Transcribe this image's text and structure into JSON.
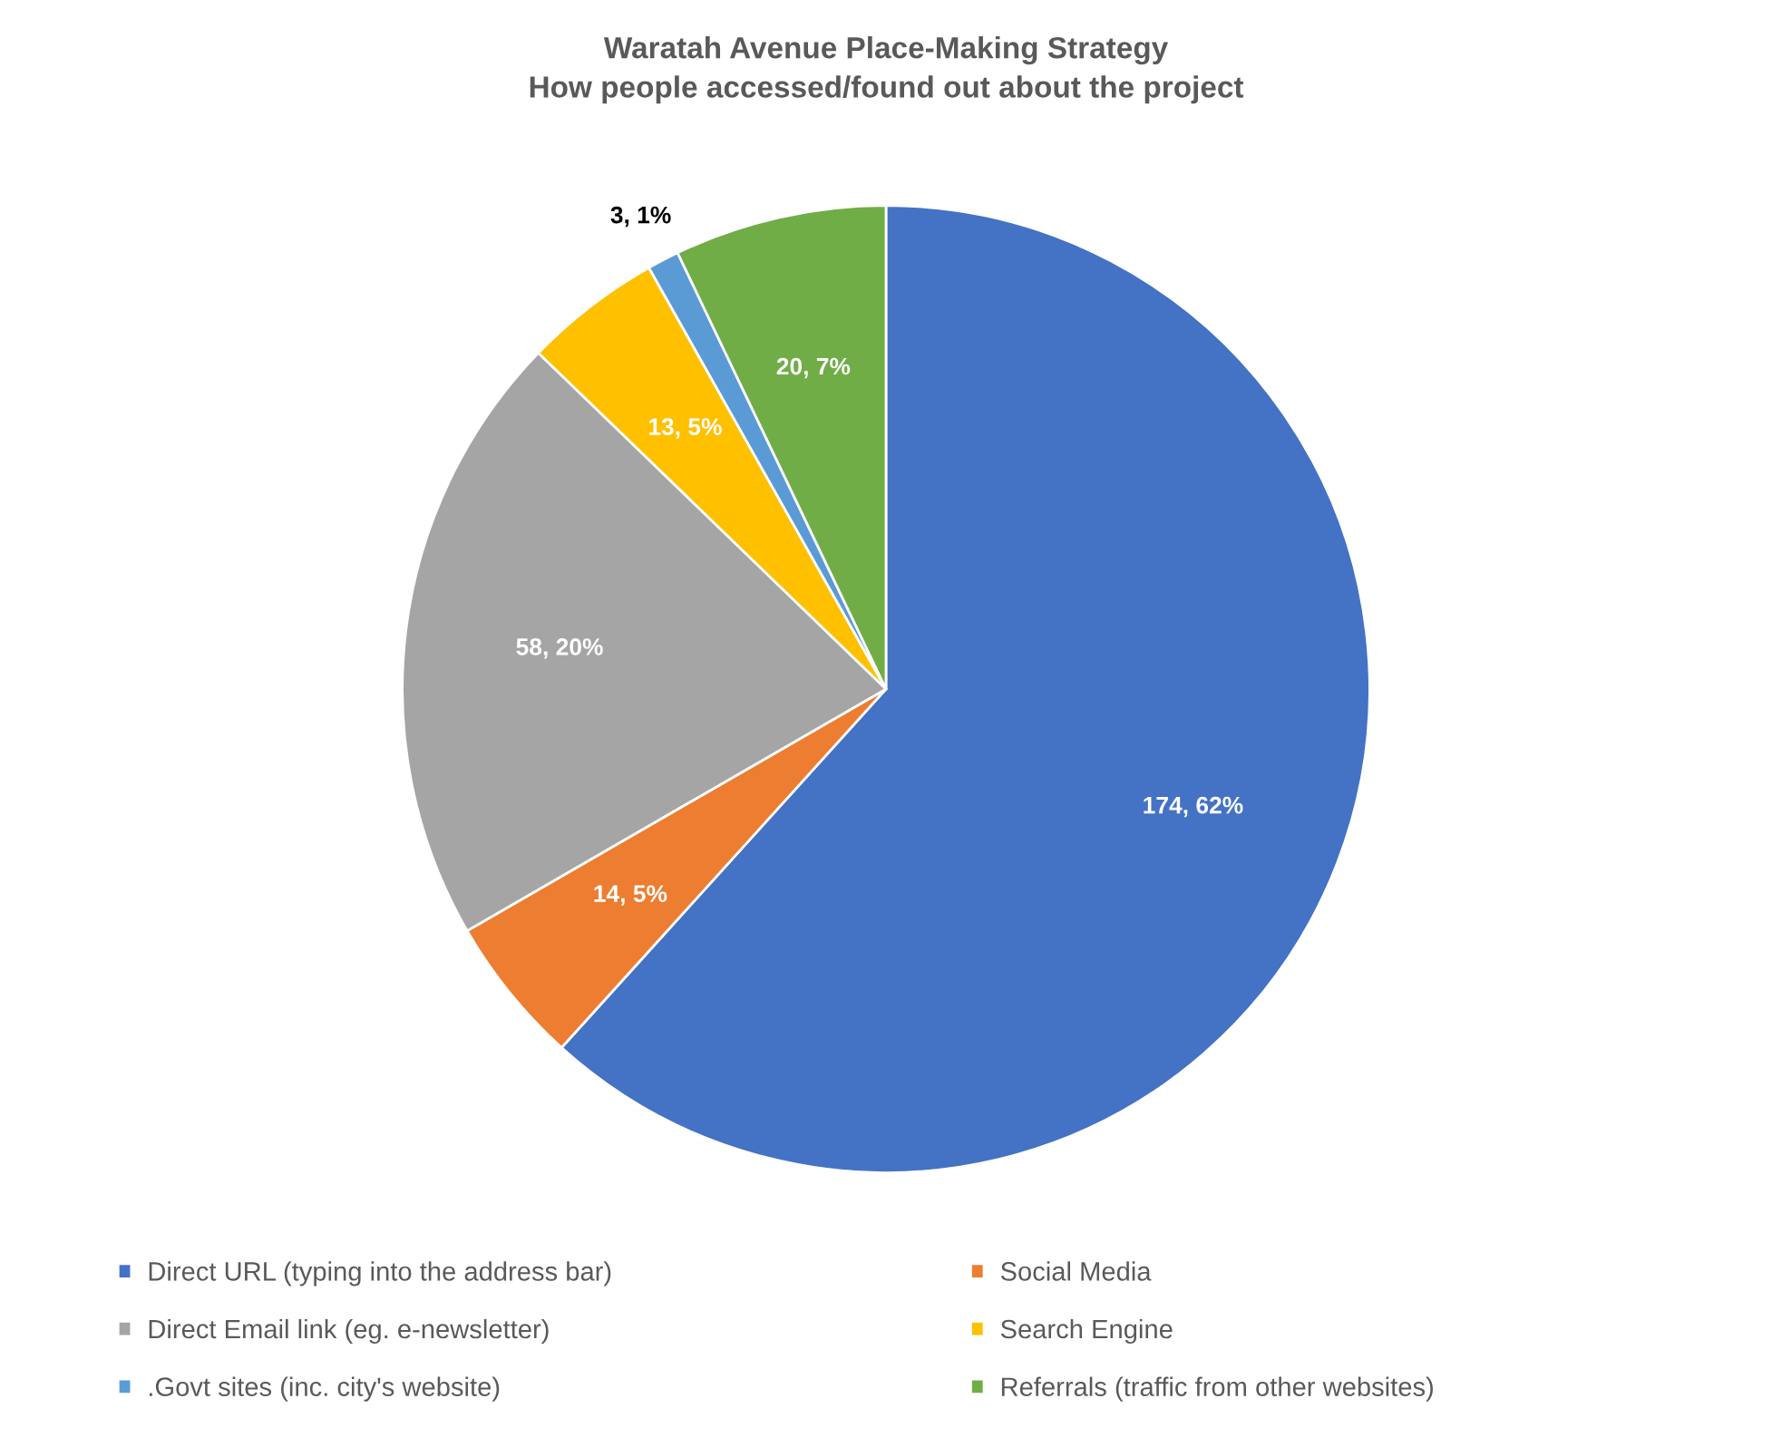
{
  "chart_data": {
    "type": "pie",
    "title": "Waratah Avenue Place-Making Strategy\nHow people accessed/found out about the project",
    "categories": [
      "Direct URL (typing into the address bar)",
      "Social Media",
      "Direct Email link (eg. e-newsletter)",
      "Search Engine",
      ".Govt sites (inc. city's website)",
      "Referrals (traffic from other websites)"
    ],
    "values": [
      174,
      14,
      58,
      13,
      3,
      20
    ],
    "colors": [
      "#4472c4",
      "#ed7d31",
      "#a5a5a5",
      "#ffc000",
      "#5b9bd5",
      "#70ad47"
    ],
    "value_labels": [
      "174, 62%",
      "14, 5%",
      "58, 20%",
      "13, 5%",
      "3, 1%",
      "20, 7%"
    ],
    "legend": "bottom"
  }
}
